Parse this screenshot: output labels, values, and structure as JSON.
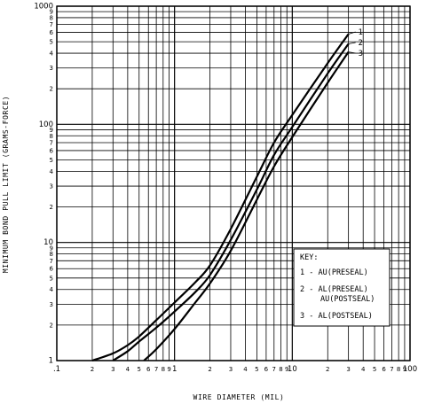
{
  "chart_data": {
    "type": "line",
    "title": "",
    "xlabel": "WIRE DIAMETER (MIL)",
    "ylabel": "MINIMUM BOND PULL LIMIT (GRAMS-FORCE)",
    "xscale": "log",
    "yscale": "log",
    "xlim": [
      0.1,
      100
    ],
    "ylim": [
      1,
      1000
    ],
    "grid": true,
    "x_tick_labels": [
      {
        "v": 0.1,
        "t": ".1"
      },
      {
        "v": 0.2,
        "t": "2"
      },
      {
        "v": 0.3,
        "t": "3"
      },
      {
        "v": 0.4,
        "t": "4"
      },
      {
        "v": 0.5,
        "t": "5"
      },
      {
        "v": 0.6,
        "t": "6"
      },
      {
        "v": 0.7,
        "t": "7"
      },
      {
        "v": 0.8,
        "t": "8"
      },
      {
        "v": 0.9,
        "t": "9"
      },
      {
        "v": 1,
        "t": "1"
      },
      {
        "v": 2,
        "t": "2"
      },
      {
        "v": 3,
        "t": "3"
      },
      {
        "v": 4,
        "t": "4"
      },
      {
        "v": 5,
        "t": "5"
      },
      {
        "v": 6,
        "t": "6"
      },
      {
        "v": 7,
        "t": "7"
      },
      {
        "v": 8,
        "t": "8"
      },
      {
        "v": 9,
        "t": "9"
      },
      {
        "v": 10,
        "t": "10"
      },
      {
        "v": 20,
        "t": "2"
      },
      {
        "v": 30,
        "t": "3"
      },
      {
        "v": 40,
        "t": "4"
      },
      {
        "v": 50,
        "t": "5"
      },
      {
        "v": 60,
        "t": "6"
      },
      {
        "v": 70,
        "t": "7"
      },
      {
        "v": 80,
        "t": "8"
      },
      {
        "v": 90,
        "t": "9"
      },
      {
        "v": 100,
        "t": "100"
      }
    ],
    "y_tick_labels": [
      {
        "v": 1,
        "t": "1"
      },
      {
        "v": 2,
        "t": "2"
      },
      {
        "v": 3,
        "t": "3"
      },
      {
        "v": 4,
        "t": "4"
      },
      {
        "v": 5,
        "t": "5"
      },
      {
        "v": 6,
        "t": "6"
      },
      {
        "v": 7,
        "t": "7"
      },
      {
        "v": 8,
        "t": "8"
      },
      {
        "v": 9,
        "t": "9"
      },
      {
        "v": 10,
        "t": "10"
      },
      {
        "v": 20,
        "t": "2"
      },
      {
        "v": 30,
        "t": "3"
      },
      {
        "v": 40,
        "t": "4"
      },
      {
        "v": 50,
        "t": "5"
      },
      {
        "v": 60,
        "t": "6"
      },
      {
        "v": 70,
        "t": "7"
      },
      {
        "v": 80,
        "t": "8"
      },
      {
        "v": 90,
        "t": "9"
      },
      {
        "v": 100,
        "t": "100"
      },
      {
        "v": 200,
        "t": "2"
      },
      {
        "v": 300,
        "t": "3"
      },
      {
        "v": 400,
        "t": "4"
      },
      {
        "v": 500,
        "t": "5"
      },
      {
        "v": 600,
        "t": "6"
      },
      {
        "v": 700,
        "t": "7"
      },
      {
        "v": 800,
        "t": "8"
      },
      {
        "v": 900,
        "t": "9"
      },
      {
        "v": 1000,
        "t": "1000"
      }
    ],
    "series": [
      {
        "name": "1",
        "x": [
          0.2,
          0.3,
          0.4,
          0.5,
          0.7,
          1,
          1.5,
          2,
          3,
          5,
          7,
          10,
          20,
          30
        ],
        "y": [
          1,
          1.15,
          1.35,
          1.6,
          2.2,
          3.1,
          4.6,
          6.4,
          13,
          36,
          70,
          120,
          330,
          580
        ]
      },
      {
        "name": "2",
        "x": [
          0.3,
          0.4,
          0.5,
          0.7,
          1,
          1.5,
          2,
          3,
          5,
          7,
          10,
          20,
          30
        ],
        "y": [
          1,
          1.2,
          1.45,
          1.9,
          2.6,
          3.8,
          5.3,
          10.5,
          28,
          55,
          95,
          270,
          480
        ]
      },
      {
        "name": "3",
        "x": [
          0.55,
          0.7,
          1,
          1.5,
          2,
          3,
          5,
          7,
          10,
          20,
          30
        ],
        "y": [
          1,
          1.25,
          1.85,
          3.1,
          4.5,
          8.5,
          23,
          44,
          78,
          225,
          410
        ]
      }
    ],
    "key": {
      "title": "KEY:",
      "lines": [
        "1 - AU(PRESEAL)",
        "2 - AL(PRESEAL)",
        "AU(POSTSEAL)",
        "3 - AL(POSTSEAL)"
      ]
    }
  }
}
